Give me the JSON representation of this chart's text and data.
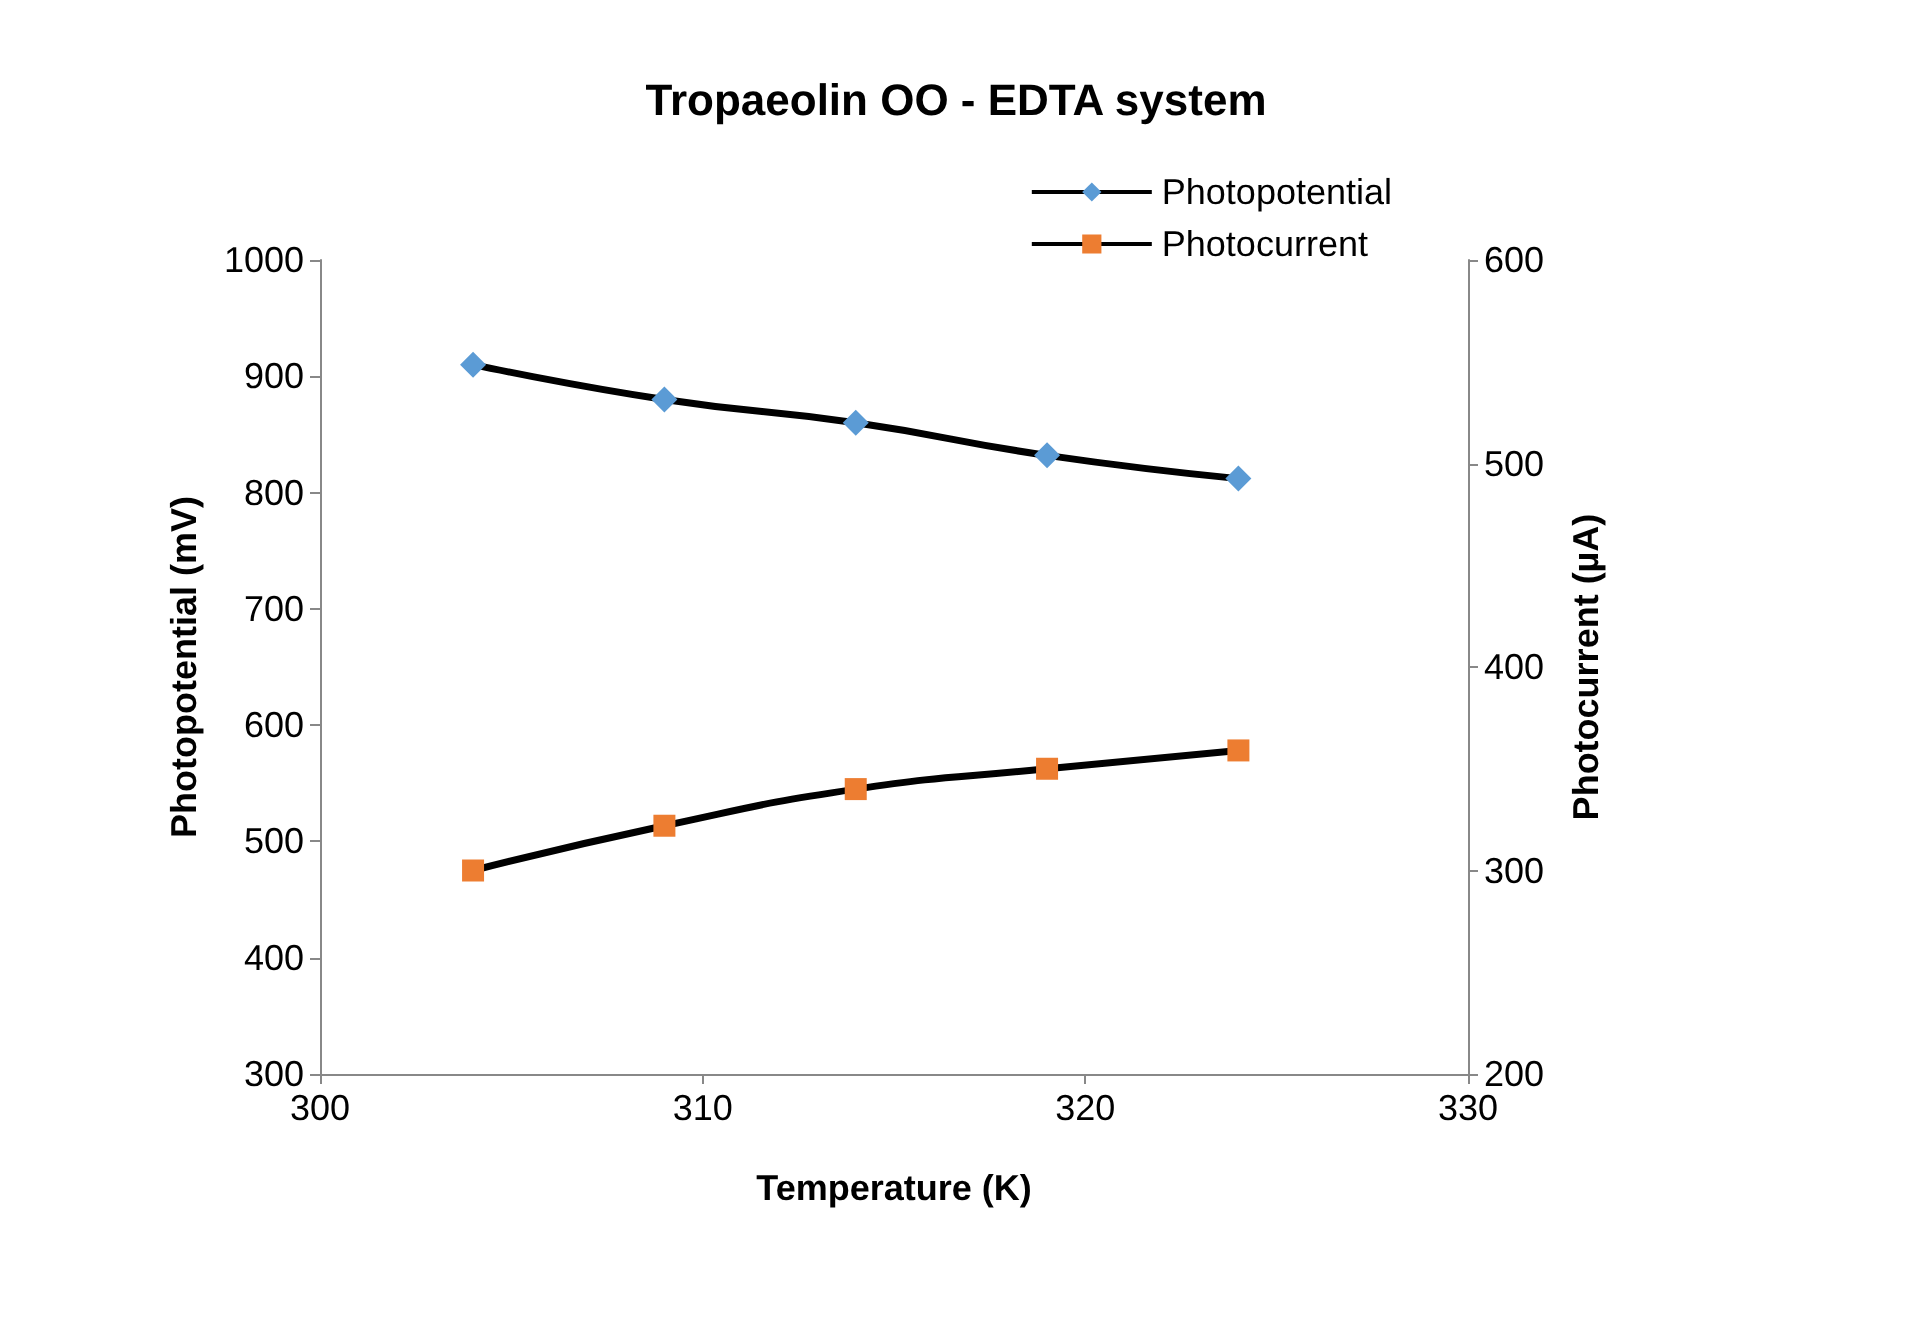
{
  "chart_data": {
    "type": "line",
    "title": "Tropaeolin OO - EDTA system",
    "xlabel": "Temperature (K)",
    "ylabel": "Photopotential (mV)",
    "y2label": "Photocurrent (µA)",
    "x": [
      304,
      309,
      314,
      319,
      324
    ],
    "series": [
      {
        "name": "Photopotential",
        "color": "#5b9bd5",
        "marker": "diamond",
        "values": [
          910,
          880,
          860,
          832,
          812
        ]
      },
      {
        "name": "Photocurrent",
        "color": "#ed7d31",
        "marker": "square",
        "axis": "y2",
        "values": [
          300,
          322,
          340,
          350,
          359
        ]
      }
    ],
    "xlim": [
      300,
      330
    ],
    "xticks": [
      300,
      310,
      320,
      330
    ],
    "ylim": [
      300,
      1000
    ],
    "yticks": [
      300,
      400,
      500,
      600,
      700,
      800,
      900,
      1000
    ],
    "y2lim": [
      200,
      600
    ],
    "y2ticks": [
      200,
      300,
      400,
      500,
      600
    ],
    "grid": false,
    "legend": "top right"
  }
}
